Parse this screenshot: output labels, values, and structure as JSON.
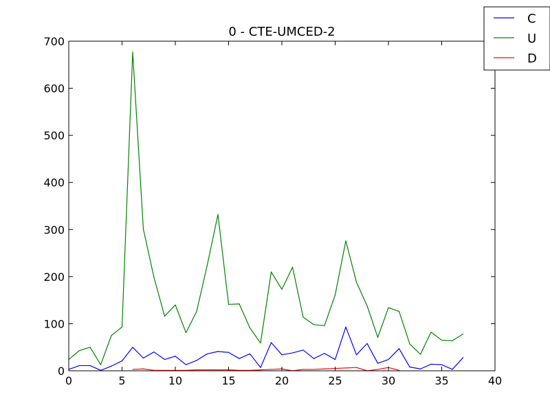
{
  "chart_data": {
    "type": "line",
    "title": "0 - CTE-UMCED-2",
    "xlabel": "",
    "ylabel": "",
    "xlim": [
      0,
      40
    ],
    "ylim": [
      0,
      700
    ],
    "x_ticks": [
      "0",
      "5",
      "10",
      "15",
      "20",
      "25",
      "30",
      "35",
      "40"
    ],
    "y_ticks": [
      "0",
      "100",
      "200",
      "300",
      "400",
      "500",
      "600",
      "700"
    ],
    "grid": false,
    "legend_position": "top-right",
    "series": [
      {
        "name": "C",
        "color": "#0000ff",
        "x": [
          0,
          1,
          2,
          3,
          4,
          5,
          6,
          7,
          8,
          9,
          10,
          11,
          12,
          13,
          14,
          15,
          16,
          17,
          18,
          19,
          20,
          21,
          22,
          23,
          24,
          25,
          26,
          27,
          28,
          29,
          30,
          31,
          32,
          33,
          34,
          35,
          36,
          37
        ],
        "values": [
          3,
          11,
          11,
          1,
          10,
          21,
          50,
          27,
          40,
          24,
          31,
          13,
          22,
          36,
          41,
          39,
          26,
          36,
          7,
          60,
          34,
          38,
          44,
          26,
          37,
          24,
          93,
          34,
          58,
          16,
          24,
          47,
          8,
          4,
          14,
          13,
          3,
          28
        ]
      },
      {
        "name": "U",
        "color": "#008000",
        "x": [
          0,
          1,
          2,
          3,
          4,
          5,
          6,
          7,
          8,
          9,
          10,
          11,
          12,
          13,
          14,
          15,
          16,
          17,
          18,
          19,
          20,
          21,
          22,
          23,
          24,
          25,
          26,
          27,
          28,
          29,
          30,
          31,
          32,
          33,
          34,
          35,
          36,
          37
        ],
        "values": [
          24,
          43,
          50,
          13,
          75,
          93,
          677,
          301,
          198,
          116,
          140,
          81,
          126,
          225,
          332,
          141,
          142,
          91,
          59,
          210,
          173,
          220,
          114,
          98,
          96,
          161,
          276,
          188,
          138,
          71,
          134,
          126,
          57,
          35,
          82,
          65,
          64,
          78
        ]
      },
      {
        "name": "D",
        "color": "#ff0000",
        "x": [
          6,
          7,
          8,
          9,
          10,
          11,
          12,
          13,
          14,
          15,
          16,
          17,
          18,
          19,
          20,
          21,
          22,
          23,
          24,
          25,
          26,
          27,
          28,
          29,
          30,
          31
        ],
        "values": [
          3,
          4,
          1,
          1,
          1,
          1,
          2,
          2,
          2,
          2,
          1,
          1,
          2,
          3,
          4,
          0,
          3,
          3,
          4,
          5,
          6,
          7,
          0,
          3,
          7,
          1
        ]
      }
    ]
  }
}
